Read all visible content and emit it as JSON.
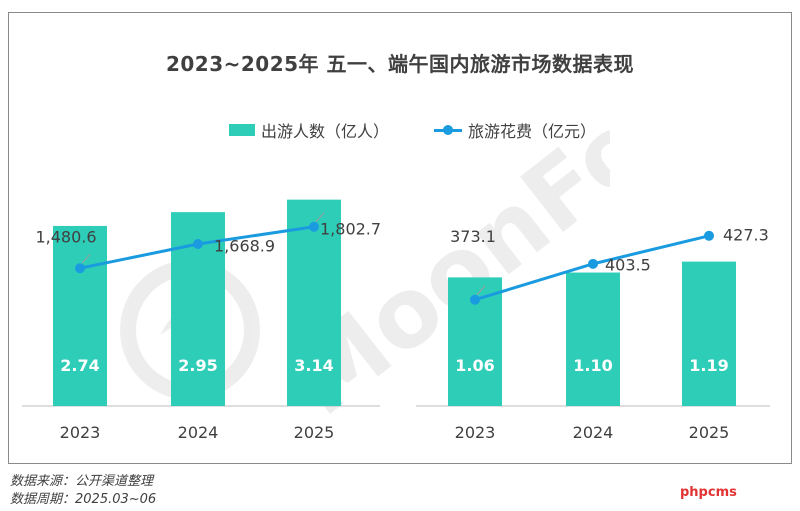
{
  "title": "2023~2025年 五一、端午国内旅游市场数据表现",
  "legend": {
    "bar_label": "出游人数（亿人）",
    "line_label": "旅游花费（亿元）"
  },
  "watermark": "MoonFox",
  "source_lines": [
    "数据来源：公开渠道整理",
    "数据周期：2025.03~06"
  ],
  "badge_text": "phpcms",
  "colors": {
    "bar": "#2ecdb8",
    "line": "#1a9be0",
    "text": "#404040"
  },
  "chart_data": [
    {
      "type": "bar+line",
      "categories": [
        "2023",
        "2024",
        "2025"
      ],
      "series": [
        {
          "name": "出游人数（亿人）",
          "type": "bar",
          "values": [
            2.74,
            2.95,
            3.14
          ],
          "labels": [
            "2.74",
            "2.95",
            "3.14"
          ]
        },
        {
          "name": "旅游花费（亿元）",
          "type": "line",
          "values": [
            1480.6,
            1668.9,
            1802.7
          ],
          "labels": [
            "1,480.6",
            "1,668.9",
            "1,802.7"
          ]
        }
      ]
    },
    {
      "type": "bar+line",
      "categories": [
        "2023",
        "2024",
        "2025"
      ],
      "series": [
        {
          "name": "出游人数（亿人）",
          "type": "bar",
          "values": [
            1.06,
            1.1,
            1.19
          ],
          "labels": [
            "1.06",
            "1.10",
            "1.19"
          ]
        },
        {
          "name": "旅游花费（亿元）",
          "type": "line",
          "values": [
            373.1,
            403.5,
            427.3
          ],
          "labels": [
            "373.1",
            "403.5",
            "427.3"
          ]
        }
      ]
    }
  ]
}
